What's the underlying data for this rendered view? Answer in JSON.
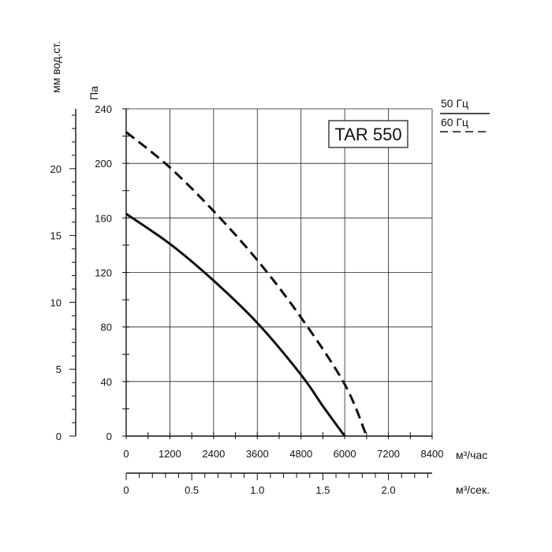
{
  "chart_data": {
    "type": "line",
    "title": "TAR 550",
    "x_axis_primary": {
      "unit": "м³/час",
      "ticks": [
        "0",
        "1200",
        "2400",
        "3600",
        "4800",
        "6000",
        "7200",
        "8400"
      ],
      "range": [
        0,
        8400
      ]
    },
    "x_axis_secondary": {
      "unit": "м³/сек.",
      "ticks": [
        "0",
        "0.5",
        "1.0",
        "1.5",
        "2.0"
      ],
      "values": [
        0,
        0.5,
        1.0,
        1.5,
        2.0
      ]
    },
    "y_axis_primary": {
      "unit": "Па",
      "ticks": [
        "0",
        "40",
        "80",
        "120",
        "160",
        "200",
        "240"
      ],
      "range": [
        0,
        240
      ]
    },
    "y_axis_secondary": {
      "unit": "мм вод.ст.",
      "ticks": [
        "0",
        "5",
        "10",
        "15",
        "20"
      ],
      "values": [
        0,
        5,
        10,
        15,
        20
      ]
    },
    "grid": true,
    "legend_position": "top-right",
    "series": [
      {
        "name": "50 Гц",
        "style": "solid",
        "x": [
          0,
          1200,
          2400,
          3600,
          4800,
          5400,
          6000
        ],
        "y": [
          163,
          141,
          114,
          83,
          45,
          22,
          0
        ]
      },
      {
        "name": "60 Гц",
        "style": "dashed",
        "x": [
          0,
          1200,
          2400,
          3600,
          4800,
          6000,
          6600
        ],
        "y": [
          223,
          197,
          165,
          129,
          87,
          38,
          0
        ]
      }
    ]
  }
}
